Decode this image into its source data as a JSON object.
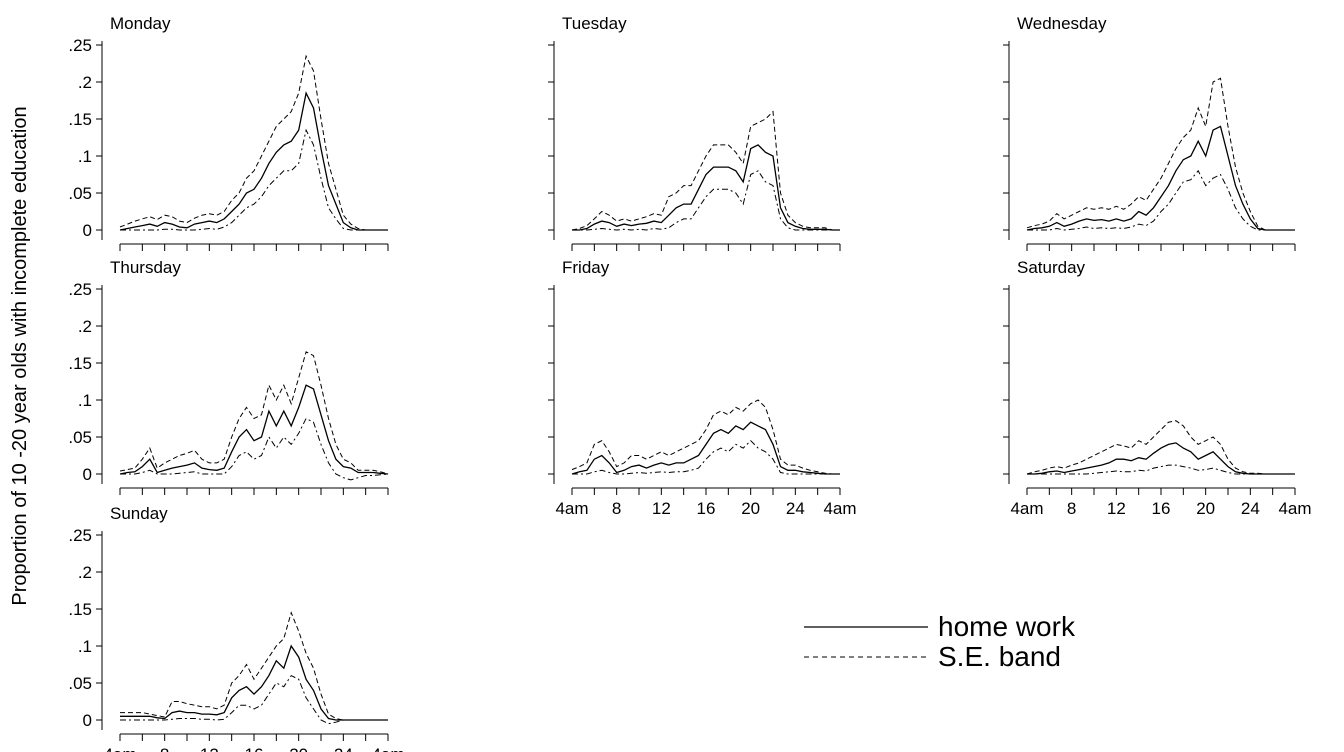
{
  "ylabel": "Proportion of 10 -20 year olds with incomplete education",
  "legend": [
    {
      "label": "home work",
      "style": "solid"
    },
    {
      "label": "S.E. band",
      "style": "dashed"
    }
  ],
  "chart_data": {
    "type": "line",
    "x_hours": [
      4,
      4.67,
      5.33,
      6,
      6.67,
      7.33,
      8,
      8.67,
      9.33,
      10,
      10.67,
      11.33,
      12,
      12.67,
      13.33,
      14,
      14.67,
      15.33,
      16,
      16.67,
      17.33,
      18,
      18.67,
      19.33,
      20,
      20.67,
      21.33,
      22,
      22.67,
      23.33,
      24,
      24.67,
      25.33,
      26,
      26.67,
      27.33,
      28
    ],
    "x_tick_values": [
      4,
      8,
      12,
      16,
      20,
      24,
      28
    ],
    "x_tick_labels": [
      "4am",
      "8",
      "12",
      "16",
      "20",
      "24",
      "4am"
    ],
    "ylim": [
      0,
      0.25
    ],
    "y_tick_values": [
      0,
      0.05,
      0.1,
      0.15,
      0.2,
      0.25
    ],
    "y_tick_labels": [
      "0",
      ".05",
      ".1",
      ".15",
      ".2",
      ".25"
    ],
    "panels": [
      {
        "title": "Monday",
        "show_yticks": true,
        "show_xticklabels": false,
        "series": [
          {
            "name": "home work",
            "values": [
              0,
              0.002,
              0.004,
              0.006,
              0.008,
              0.005,
              0.01,
              0.008,
              0.004,
              0.003,
              0.008,
              0.01,
              0.012,
              0.01,
              0.015,
              0.025,
              0.035,
              0.05,
              0.055,
              0.07,
              0.09,
              0.105,
              0.115,
              0.12,
              0.135,
              0.185,
              0.165,
              0.11,
              0.06,
              0.035,
              0.01,
              0.003,
              0,
              0,
              0,
              0,
              0
            ]
          },
          {
            "name": "S.E. band upper",
            "values": [
              0.004,
              0.008,
              0.012,
              0.015,
              0.018,
              0.014,
              0.02,
              0.018,
              0.012,
              0.01,
              0.016,
              0.02,
              0.022,
              0.02,
              0.025,
              0.04,
              0.05,
              0.07,
              0.08,
              0.1,
              0.12,
              0.14,
              0.15,
              0.16,
              0.185,
              0.235,
              0.215,
              0.15,
              0.09,
              0.055,
              0.02,
              0.008,
              0.002,
              0,
              0,
              0,
              0
            ]
          },
          {
            "name": "S.E. band lower",
            "values": [
              0,
              0,
              0,
              0,
              0,
              0,
              0.001,
              0.001,
              0,
              0,
              0,
              0.001,
              0.002,
              0.001,
              0.004,
              0.01,
              0.02,
              0.03,
              0.035,
              0.045,
              0.06,
              0.07,
              0.08,
              0.08,
              0.09,
              0.135,
              0.115,
              0.07,
              0.03,
              0.015,
              0.002,
              0,
              0,
              0,
              0,
              0,
              0
            ]
          }
        ]
      },
      {
        "title": "Tuesday",
        "show_yticks": false,
        "show_xticklabels": false,
        "series": [
          {
            "name": "home work",
            "values": [
              0,
              0,
              0.002,
              0.008,
              0.012,
              0.01,
              0.005,
              0.008,
              0.006,
              0.008,
              0.009,
              0.012,
              0.01,
              0.02,
              0.03,
              0.035,
              0.035,
              0.055,
              0.075,
              0.085,
              0.085,
              0.085,
              0.08,
              0.065,
              0.11,
              0.115,
              0.105,
              0.1,
              0.03,
              0.01,
              0.005,
              0.002,
              0.001,
              0.001,
              0.001,
              0,
              0
            ]
          },
          {
            "name": "S.E. band upper",
            "values": [
              0,
              0.002,
              0.006,
              0.015,
              0.025,
              0.02,
              0.012,
              0.015,
              0.012,
              0.015,
              0.018,
              0.022,
              0.02,
              0.045,
              0.05,
              0.06,
              0.06,
              0.08,
              0.1,
              0.115,
              0.115,
              0.115,
              0.105,
              0.09,
              0.14,
              0.145,
              0.15,
              0.16,
              0.05,
              0.02,
              0.01,
              0.005,
              0.003,
              0.003,
              0.003,
              0,
              0
            ]
          },
          {
            "name": "S.E. band lower",
            "values": [
              0,
              0,
              0,
              0.001,
              0.002,
              0.001,
              0,
              0.001,
              0,
              0.001,
              0,
              0.002,
              0.001,
              0.003,
              0.01,
              0.015,
              0.015,
              0.03,
              0.045,
              0.055,
              0.055,
              0.055,
              0.05,
              0.035,
              0.075,
              0.08,
              0.065,
              0.06,
              0.015,
              0.003,
              0,
              0,
              0,
              0,
              0,
              0,
              0
            ]
          }
        ]
      },
      {
        "title": "Wednesday",
        "show_yticks": false,
        "show_xticklabels": false,
        "series": [
          {
            "name": "home work",
            "values": [
              0,
              0.002,
              0.003,
              0.005,
              0.01,
              0.005,
              0.008,
              0.012,
              0.015,
              0.013,
              0.014,
              0.012,
              0.015,
              0.012,
              0.015,
              0.025,
              0.02,
              0.03,
              0.045,
              0.06,
              0.08,
              0.095,
              0.1,
              0.12,
              0.1,
              0.135,
              0.14,
              0.1,
              0.06,
              0.035,
              0.015,
              0.002,
              0,
              0,
              0,
              0,
              0
            ]
          },
          {
            "name": "S.E. band upper",
            "values": [
              0.003,
              0.006,
              0.008,
              0.012,
              0.022,
              0.015,
              0.02,
              0.025,
              0.03,
              0.028,
              0.03,
              0.028,
              0.032,
              0.028,
              0.035,
              0.045,
              0.04,
              0.055,
              0.07,
              0.09,
              0.11,
              0.125,
              0.135,
              0.165,
              0.14,
              0.2,
              0.205,
              0.14,
              0.085,
              0.05,
              0.025,
              0.005,
              0,
              0,
              0,
              0,
              0
            ]
          },
          {
            "name": "S.E. band lower",
            "values": [
              0,
              0,
              0,
              0,
              0.002,
              0,
              0.001,
              0.002,
              0.004,
              0.002,
              0.003,
              0.002,
              0.003,
              0.002,
              0.004,
              0.008,
              0.006,
              0.012,
              0.025,
              0.035,
              0.05,
              0.065,
              0.068,
              0.08,
              0.06,
              0.07,
              0.075,
              0.055,
              0.03,
              0.015,
              0.005,
              0,
              0,
              0,
              0,
              0,
              0
            ]
          }
        ]
      },
      {
        "title": "Thursday",
        "show_yticks": true,
        "show_xticklabels": false,
        "series": [
          {
            "name": "home work",
            "values": [
              0,
              0.002,
              0.003,
              0.01,
              0.02,
              0.002,
              0.005,
              0.008,
              0.01,
              0.012,
              0.015,
              0.008,
              0.006,
              0.005,
              0.008,
              0.03,
              0.05,
              0.06,
              0.045,
              0.05,
              0.085,
              0.065,
              0.085,
              0.065,
              0.09,
              0.12,
              0.115,
              0.08,
              0.045,
              0.02,
              0.01,
              0.008,
              0.002,
              0.002,
              0.002,
              0.001,
              0
            ]
          },
          {
            "name": "S.E. band upper",
            "values": [
              0.004,
              0.006,
              0.008,
              0.02,
              0.035,
              0.008,
              0.015,
              0.02,
              0.025,
              0.028,
              0.032,
              0.02,
              0.015,
              0.015,
              0.02,
              0.05,
              0.075,
              0.09,
              0.075,
              0.08,
              0.12,
              0.1,
              0.12,
              0.095,
              0.13,
              0.165,
              0.16,
              0.12,
              0.075,
              0.04,
              0.02,
              0.015,
              0.005,
              0.005,
              0.005,
              0.003,
              0
            ]
          },
          {
            "name": "S.E. band lower",
            "values": [
              0,
              0,
              0,
              0.002,
              0.005,
              0,
              0,
              0,
              0.001,
              0.002,
              0.003,
              0,
              0,
              0,
              0,
              0.01,
              0.025,
              0.03,
              0.02,
              0.025,
              0.05,
              0.035,
              0.05,
              0.04,
              0.055,
              0.075,
              0.07,
              0.04,
              0.015,
              0,
              -0.005,
              -0.008,
              -0.005,
              -0.002,
              -0.002,
              -0.001,
              0
            ]
          }
        ]
      },
      {
        "title": "Friday",
        "show_yticks": false,
        "show_xticklabels": true,
        "series": [
          {
            "name": "home work",
            "values": [
              0,
              0.003,
              0.005,
              0.02,
              0.025,
              0.015,
              0.002,
              0.005,
              0.01,
              0.012,
              0.008,
              0.012,
              0.015,
              0.012,
              0.015,
              0.015,
              0.02,
              0.025,
              0.04,
              0.055,
              0.06,
              0.055,
              0.065,
              0.06,
              0.07,
              0.065,
              0.06,
              0.04,
              0.01,
              0.005,
              0.005,
              0.003,
              0.002,
              0.001,
              0,
              0,
              0
            ]
          },
          {
            "name": "S.E. band upper",
            "values": [
              0.006,
              0.01,
              0.015,
              0.04,
              0.045,
              0.03,
              0.01,
              0.015,
              0.025,
              0.025,
              0.02,
              0.025,
              0.03,
              0.025,
              0.03,
              0.035,
              0.04,
              0.045,
              0.06,
              0.08,
              0.085,
              0.08,
              0.09,
              0.085,
              0.095,
              0.1,
              0.09,
              0.06,
              0.02,
              0.012,
              0.012,
              0.008,
              0.005,
              0.003,
              0.001,
              0,
              0
            ]
          },
          {
            "name": "S.E. band lower",
            "values": [
              0,
              0,
              0,
              0.003,
              0.005,
              0.002,
              0,
              0,
              0.001,
              0.002,
              0.001,
              0.002,
              0.003,
              0.002,
              0.003,
              0.003,
              0.005,
              0.008,
              0.02,
              0.03,
              0.035,
              0.03,
              0.04,
              0.035,
              0.045,
              0.035,
              0.03,
              0.02,
              0.002,
              0,
              0,
              0,
              0,
              0,
              0,
              0,
              0
            ]
          }
        ]
      },
      {
        "title": "Saturday",
        "show_yticks": false,
        "show_xticklabels": true,
        "series": [
          {
            "name": "home work",
            "values": [
              0,
              0,
              0.001,
              0.003,
              0.004,
              0.002,
              0.004,
              0.006,
              0.008,
              0.01,
              0.012,
              0.015,
              0.02,
              0.02,
              0.018,
              0.022,
              0.02,
              0.028,
              0.035,
              0.04,
              0.042,
              0.035,
              0.03,
              0.02,
              0.025,
              0.03,
              0.02,
              0.01,
              0.003,
              0.001,
              0,
              0,
              0,
              0,
              0,
              0,
              0
            ]
          },
          {
            "name": "S.E. band upper",
            "values": [
              0,
              0.003,
              0.005,
              0.008,
              0.01,
              0.008,
              0.012,
              0.015,
              0.02,
              0.025,
              0.03,
              0.035,
              0.04,
              0.038,
              0.035,
              0.045,
              0.04,
              0.05,
              0.06,
              0.07,
              0.072,
              0.065,
              0.05,
              0.04,
              0.045,
              0.05,
              0.04,
              0.02,
              0.008,
              0.003,
              0.001,
              0.001,
              0,
              0,
              0,
              0,
              0
            ]
          },
          {
            "name": "S.E. band lower",
            "values": [
              0,
              0,
              0,
              0,
              0,
              0,
              0,
              0,
              0,
              0.001,
              0.002,
              0.003,
              0.004,
              0.003,
              0.003,
              0.005,
              0.004,
              0.008,
              0.01,
              0.012,
              0.012,
              0.01,
              0.008,
              0.005,
              0.006,
              0.008,
              0.005,
              0.002,
              0,
              0,
              0,
              0,
              0,
              0,
              0,
              0,
              0
            ]
          }
        ]
      },
      {
        "title": "Sunday",
        "show_yticks": true,
        "show_xticklabels": true,
        "series": [
          {
            "name": "home work",
            "values": [
              0.005,
              0.005,
              0.005,
              0.005,
              0.005,
              0.003,
              0.002,
              0.01,
              0.012,
              0.01,
              0.01,
              0.008,
              0.008,
              0.007,
              0.01,
              0.03,
              0.04,
              0.045,
              0.035,
              0.045,
              0.06,
              0.08,
              0.07,
              0.1,
              0.085,
              0.055,
              0.04,
              0.015,
              0.002,
              0,
              0,
              0,
              0,
              0,
              0,
              0,
              0
            ]
          },
          {
            "name": "S.E. band upper",
            "values": [
              0.01,
              0.01,
              0.01,
              0.01,
              0.008,
              0.006,
              0.004,
              0.025,
              0.025,
              0.022,
              0.02,
              0.018,
              0.018,
              0.015,
              0.02,
              0.05,
              0.06,
              0.075,
              0.055,
              0.07,
              0.085,
              0.1,
              0.11,
              0.145,
              0.12,
              0.09,
              0.07,
              0.035,
              0.008,
              0.002,
              0,
              0,
              0,
              0,
              0,
              0,
              0
            ]
          },
          {
            "name": "S.E. band lower",
            "values": [
              0,
              0,
              0,
              0,
              0,
              0,
              0,
              0.001,
              0.002,
              0.002,
              0.002,
              0.001,
              0.001,
              0,
              0.001,
              0.01,
              0.02,
              0.02,
              0.015,
              0.02,
              0.035,
              0.05,
              0.045,
              0.06,
              0.055,
              0.03,
              0.015,
              0,
              -0.005,
              -0.003,
              0,
              0,
              0,
              0,
              0,
              0,
              0
            ]
          }
        ]
      }
    ]
  }
}
